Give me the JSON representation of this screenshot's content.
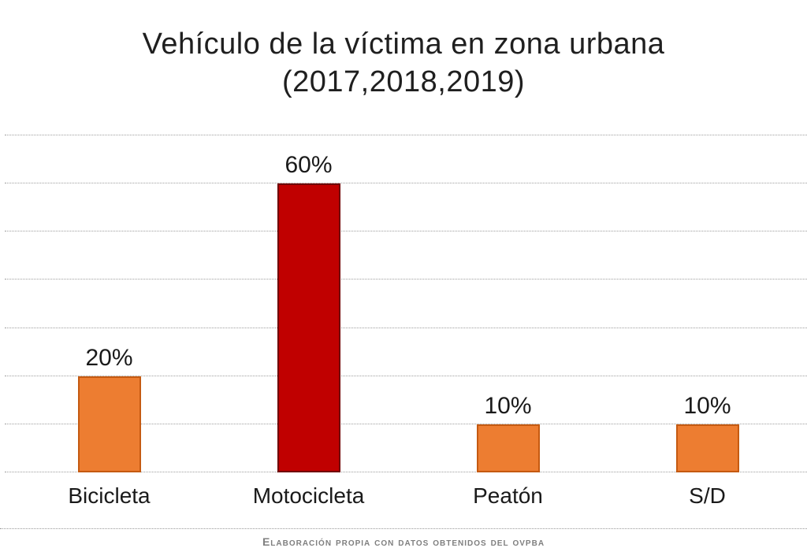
{
  "page": {
    "background_color": "#ffffff"
  },
  "chart_data": {
    "type": "bar",
    "title": "Vehículo de la víctima en zona urbana",
    "subtitle": "(2017,2018,2019)",
    "categories": [
      "Bicicleta",
      "Motocicleta",
      "Peatón",
      "S/D"
    ],
    "values": [
      20,
      60,
      10,
      10
    ],
    "value_labels": [
      "20%",
      "60%",
      "10%",
      "10%"
    ],
    "unit": "%",
    "ylim": [
      0,
      70
    ],
    "gridline_step": 10,
    "grid": true,
    "legend": "none",
    "xlabel": "",
    "ylabel": "",
    "bar_colors": [
      "#ED7D31",
      "#C00000",
      "#ED7D31",
      "#ED7D31"
    ],
    "bar_border_colors": [
      "#C55A11",
      "#700000",
      "#C55A11",
      "#C55A11"
    ],
    "gridline_color": "#9e9e9e",
    "footer": "Elaboración propia con datos obtenidos del ovpba"
  }
}
